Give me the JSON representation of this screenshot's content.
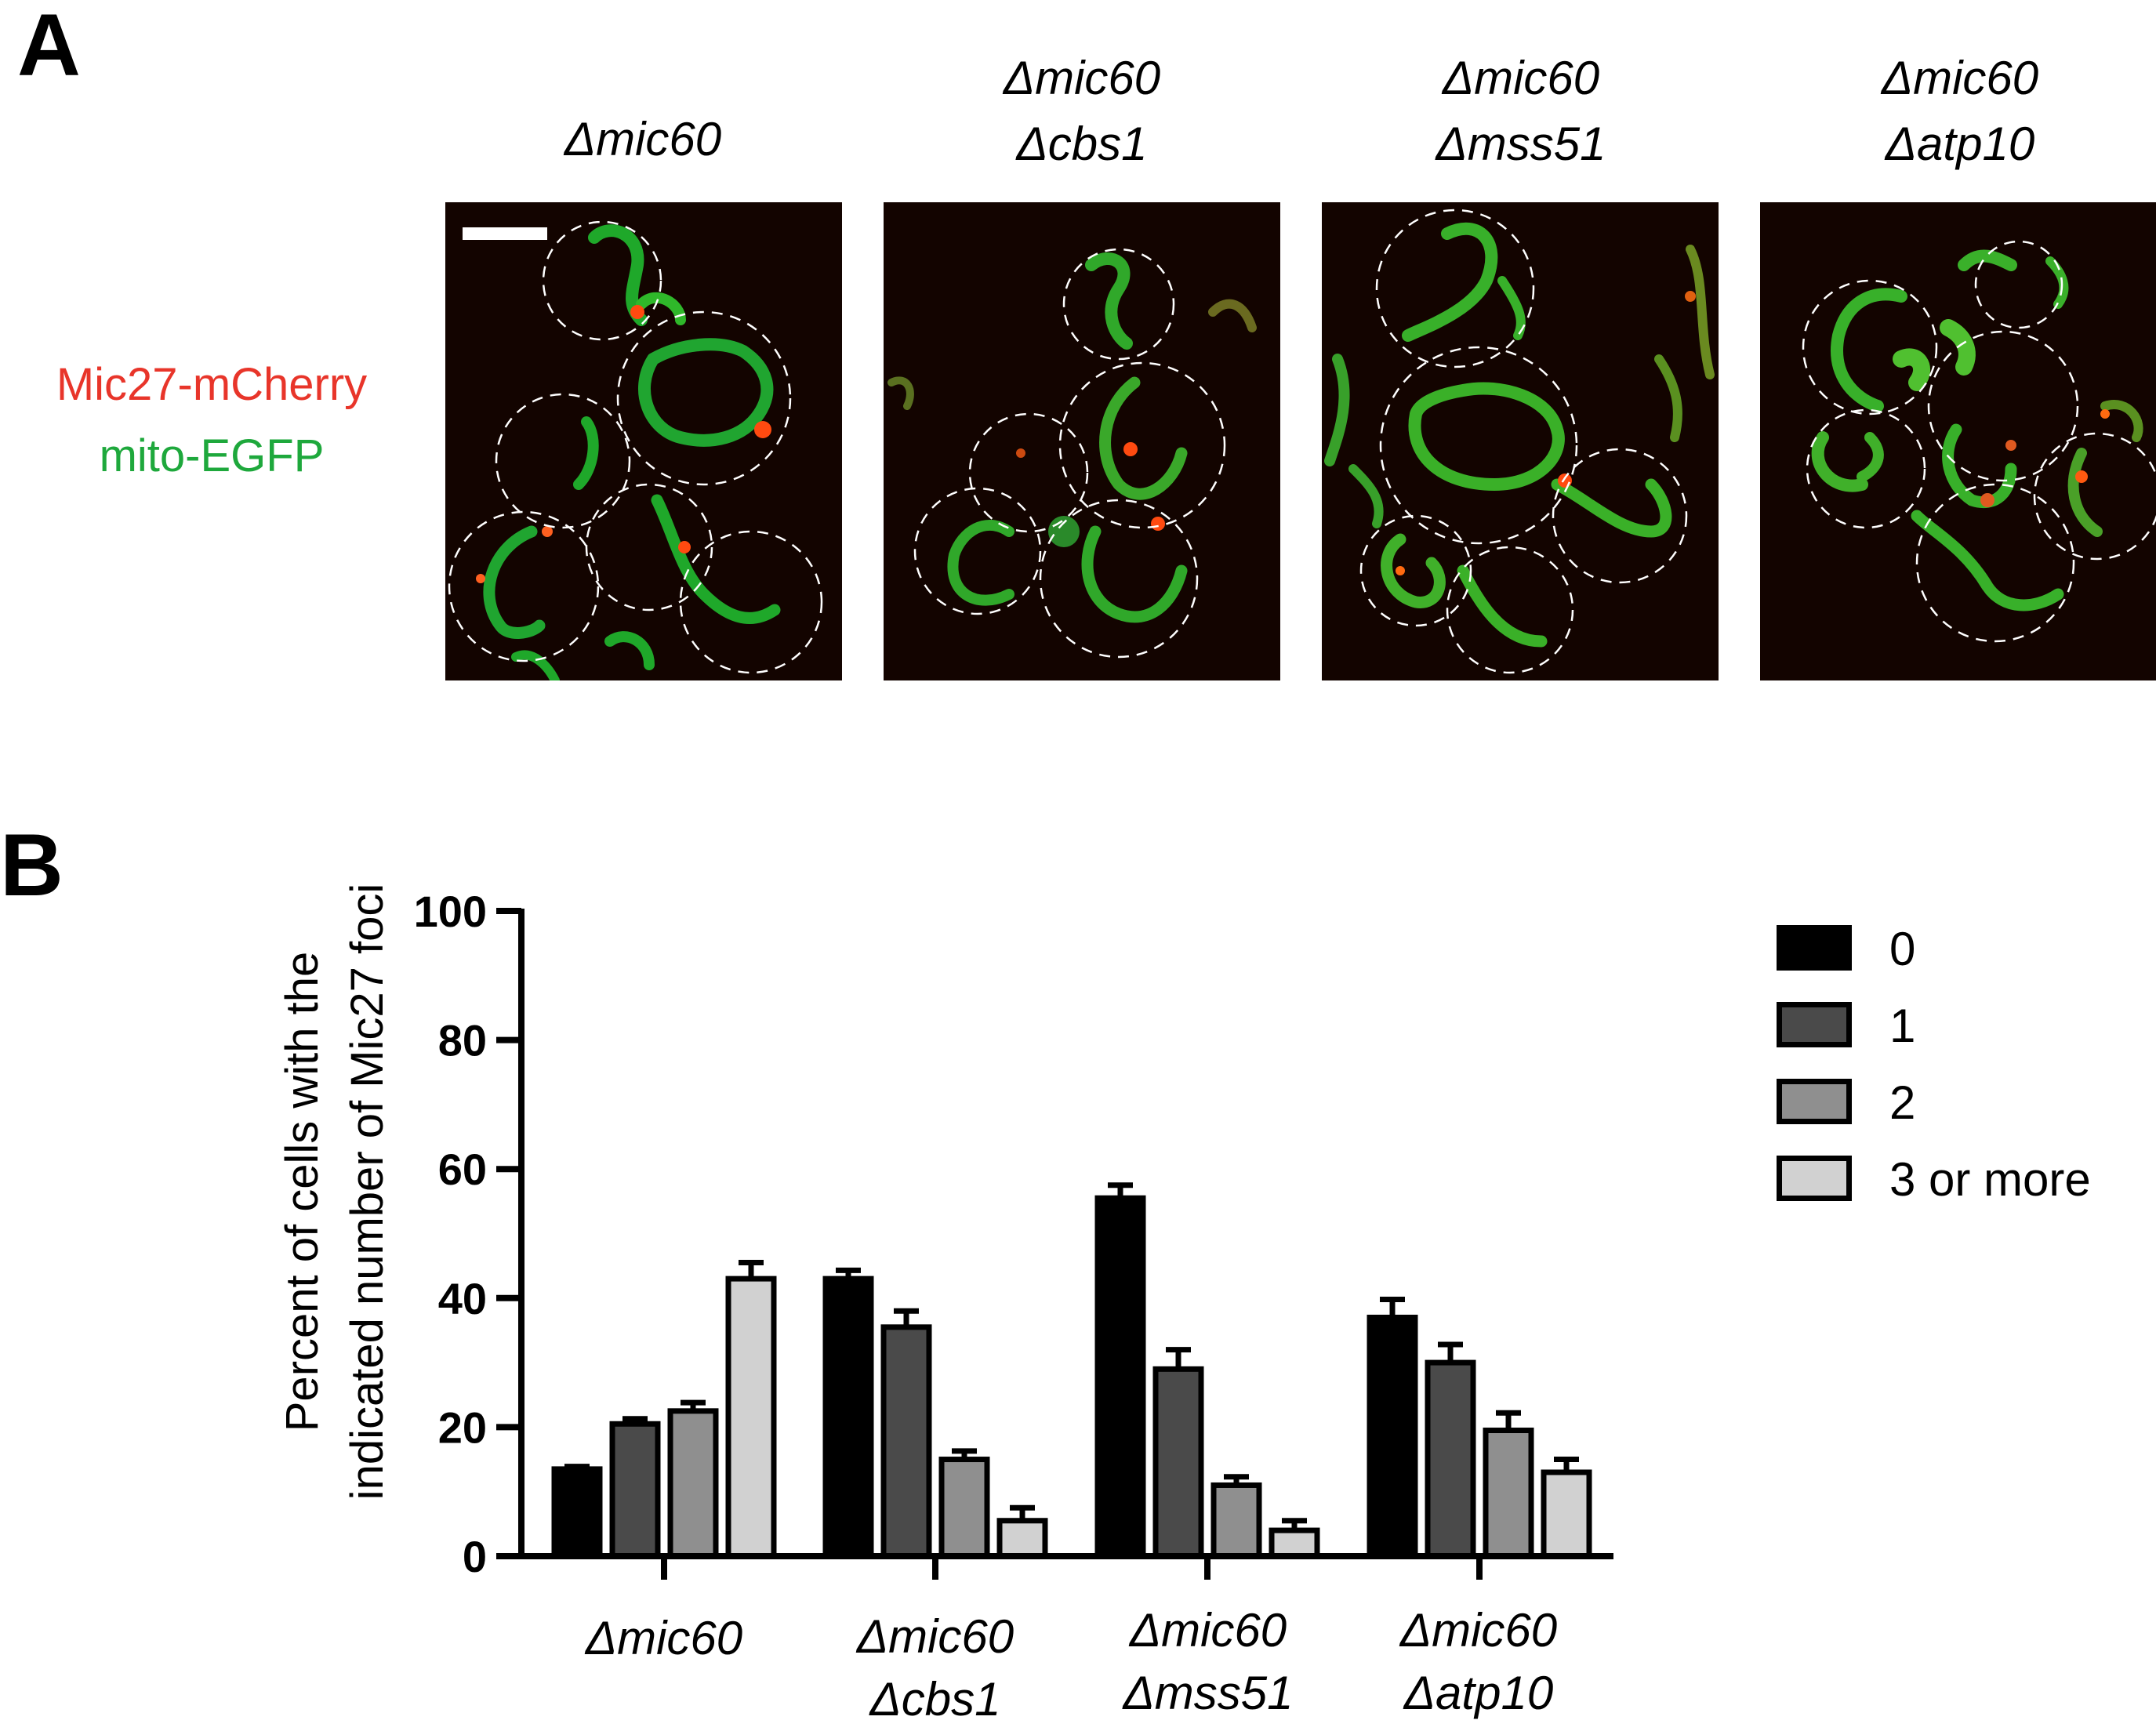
{
  "panel_a": {
    "letter": "A",
    "columns": [
      {
        "line1": "Δmic60",
        "line2": ""
      },
      {
        "line1": "Δmic60",
        "line2": "Δcbs1"
      },
      {
        "line1": "Δmic60",
        "line2": "Δmss51"
      },
      {
        "line1": "Δmic60",
        "line2": "Δatp10"
      }
    ],
    "legend": {
      "red_label": "Mic27-mCherry",
      "green_label": "mito-EGFP",
      "red_color": "#e8352a",
      "green_color": "#1ea83c"
    }
  },
  "panel_b": {
    "letter": "B"
  },
  "chart_data": {
    "type": "bar",
    "title": "",
    "ylabel_line1": "Percent of cells with the",
    "ylabel_line2": "indicated number of Mic27 foci",
    "xlabel": "",
    "ylim": [
      0,
      100
    ],
    "yticks": [
      "0",
      "20",
      "40",
      "60",
      "80",
      "100"
    ],
    "categories": [
      {
        "line1": "Δmic60",
        "line2": ""
      },
      {
        "line1": "Δmic60",
        "line2": "Δcbs1"
      },
      {
        "line1": "Δmic60",
        "line2": "Δmss51"
      },
      {
        "line1": "Δmic60",
        "line2": "Δatp10"
      }
    ],
    "series": [
      {
        "name": "0",
        "color": "#000000",
        "values": [
          13.5,
          43,
          55.5,
          37
        ],
        "errors": [
          0.4,
          1.3,
          2,
          2.8
        ]
      },
      {
        "name": "1",
        "color": "#4a4a4a",
        "values": [
          20.5,
          35.5,
          29,
          30
        ],
        "errors": [
          0.8,
          2.5,
          3,
          2.8
        ]
      },
      {
        "name": "2",
        "color": "#8f8f8f",
        "values": [
          22.5,
          15,
          11,
          19.5
        ],
        "errors": [
          1.3,
          1.3,
          1.3,
          2.7
        ]
      },
      {
        "name": "3 or more",
        "color": "#d1d1d1",
        "values": [
          43,
          5.5,
          4,
          13
        ],
        "errors": [
          2.5,
          2,
          1.5,
          2
        ]
      }
    ],
    "legend_position": "right"
  }
}
